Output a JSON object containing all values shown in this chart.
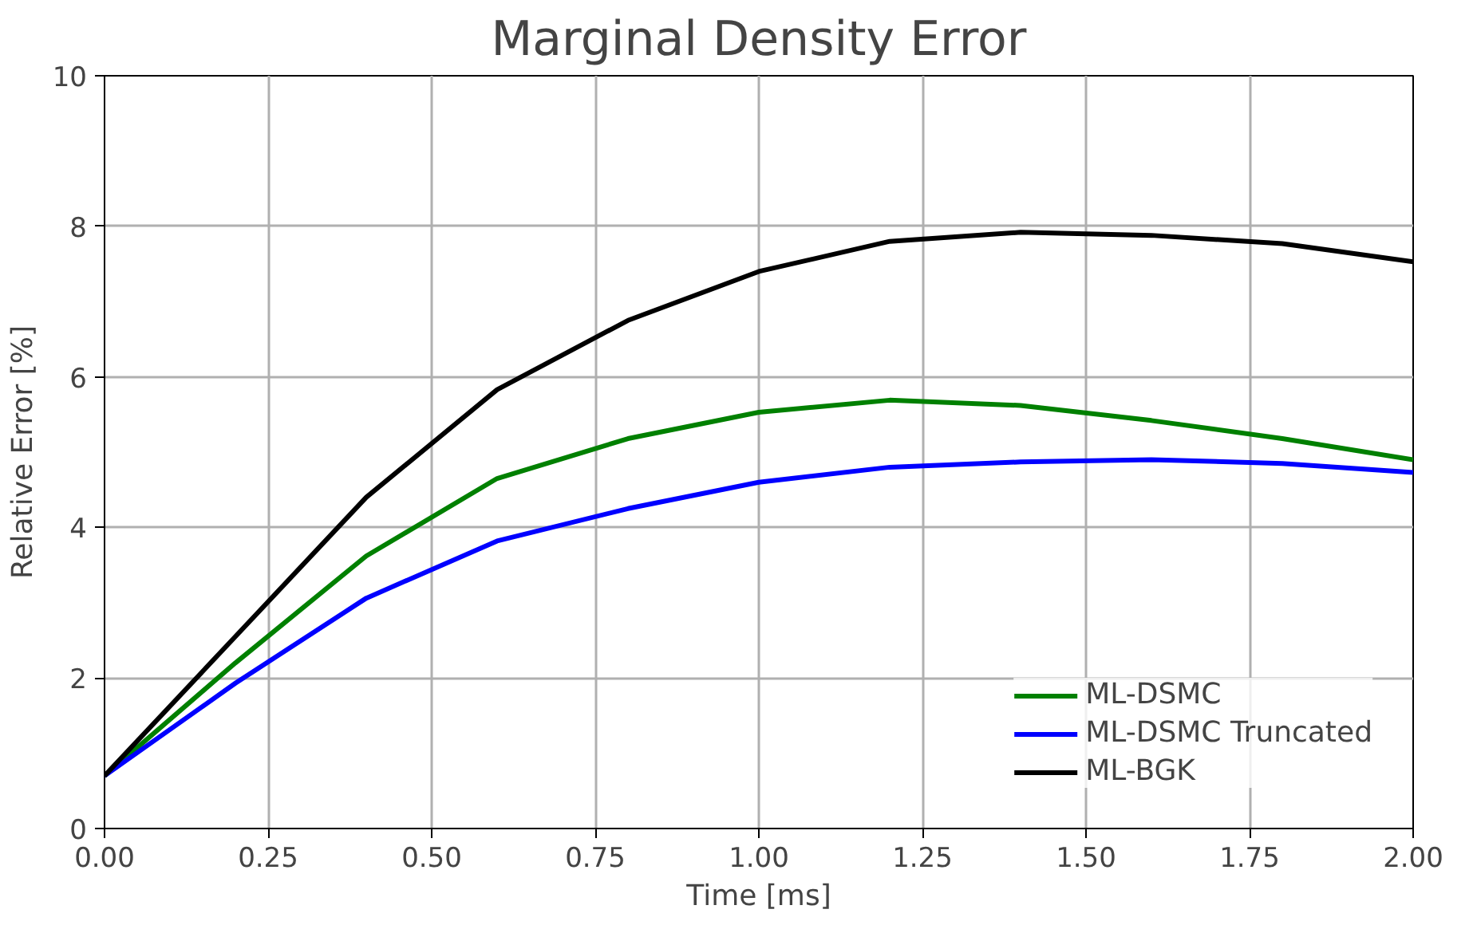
{
  "chart_data": {
    "type": "line",
    "title": "Marginal Density Error",
    "xlabel": "Time [ms]",
    "ylabel": "Relative Error [%]",
    "x": [
      0,
      0.2,
      0.4,
      0.6,
      0.8,
      1.0,
      1.2,
      1.4,
      1.6,
      1.8,
      2.0
    ],
    "series": [
      {
        "name": "ML-DSMC",
        "color": "#008000",
        "values": [
          0.7,
          2.2,
          3.62,
          4.65,
          5.18,
          5.53,
          5.69,
          5.62,
          5.42,
          5.18,
          4.9
        ]
      },
      {
        "name": "ML-DSMC Truncated",
        "color": "#0000ff",
        "values": [
          0.7,
          1.93,
          3.06,
          3.82,
          4.25,
          4.6,
          4.8,
          4.87,
          4.9,
          4.85,
          4.73
        ]
      },
      {
        "name": "ML-BGK",
        "color": "#000000",
        "values": [
          0.7,
          2.55,
          4.4,
          5.83,
          6.75,
          7.4,
          7.8,
          7.92,
          7.88,
          7.77,
          7.53
        ]
      }
    ],
    "xlim": [
      0,
      2
    ],
    "ylim": [
      0,
      10
    ],
    "xticks": [
      {
        "value": 0,
        "label": "0.00"
      },
      {
        "value": 0.25,
        "label": "0.25"
      },
      {
        "value": 0.5,
        "label": "0.50"
      },
      {
        "value": 0.75,
        "label": "0.75"
      },
      {
        "value": 1,
        "label": "1.00"
      },
      {
        "value": 1.25,
        "label": "1.25"
      },
      {
        "value": 1.5,
        "label": "1.50"
      },
      {
        "value": 1.75,
        "label": "1.75"
      },
      {
        "value": 2,
        "label": "2.00"
      }
    ],
    "yticks": [
      0,
      2,
      4,
      6,
      8,
      10
    ],
    "grid": true,
    "legend": "bottom right",
    "marker": "none",
    "line_style": "solid"
  }
}
